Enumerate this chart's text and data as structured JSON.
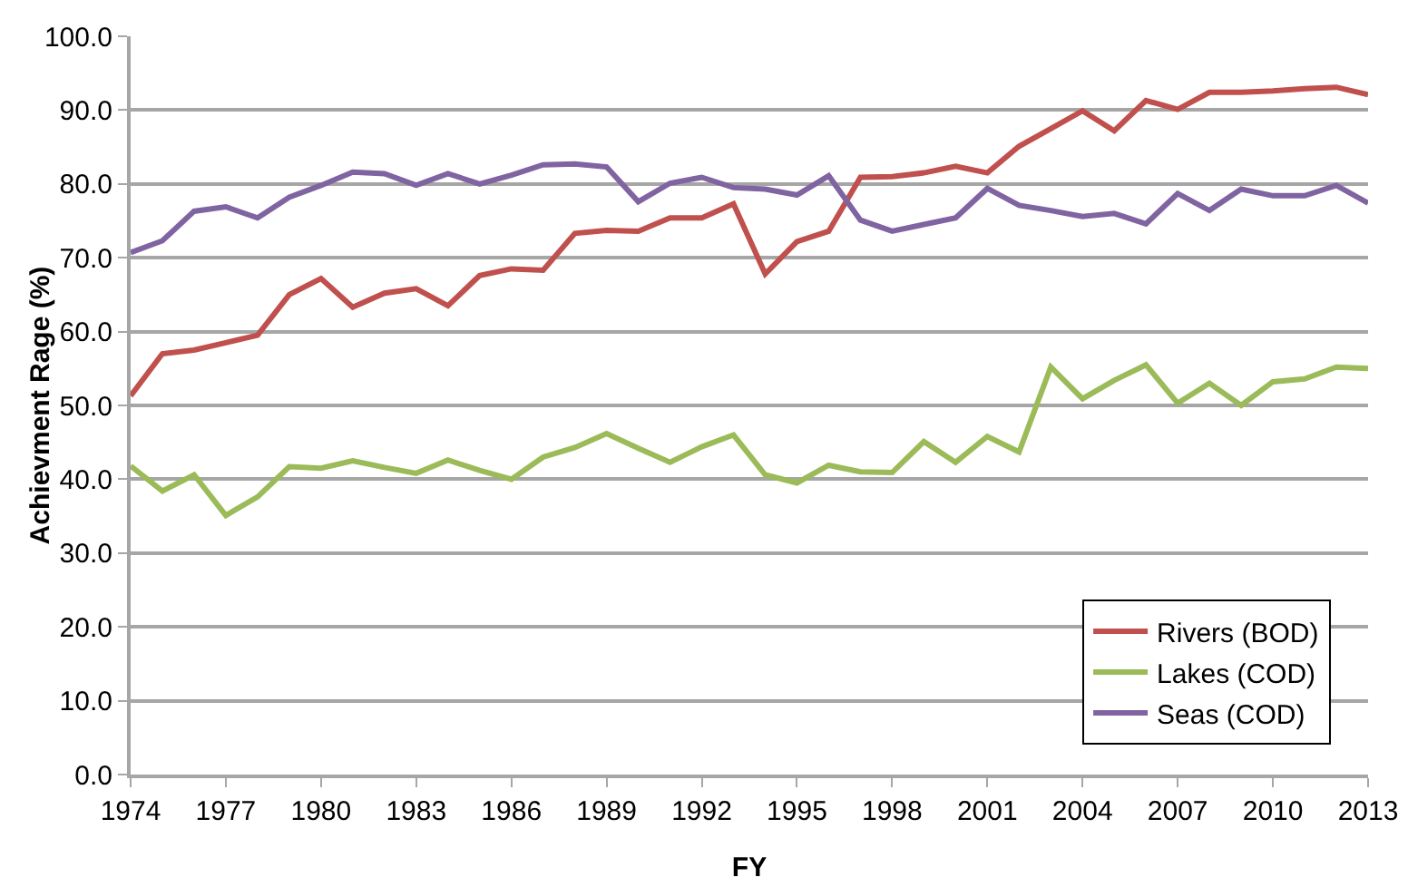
{
  "chart_data": {
    "type": "line",
    "xlabel": "FY",
    "ylabel": "Achievment Rage (%)",
    "x": [
      1974,
      1975,
      1976,
      1977,
      1978,
      1979,
      1980,
      1981,
      1982,
      1983,
      1984,
      1985,
      1986,
      1987,
      1988,
      1989,
      1990,
      1991,
      1992,
      1993,
      1994,
      1995,
      1996,
      1997,
      1998,
      1999,
      2000,
      2001,
      2002,
      2003,
      2004,
      2005,
      2006,
      2007,
      2008,
      2009,
      2010,
      2011,
      2012,
      2013
    ],
    "series": [
      {
        "name": "Rivers (BOD)",
        "color": "#c0504d",
        "values": [
          51.3,
          57,
          57.5,
          58.5,
          59.5,
          65,
          67.2,
          63.3,
          65.2,
          65.8,
          63.5,
          67.6,
          68.5,
          68.3,
          73.3,
          73.7,
          73.6,
          75.4,
          75.4,
          77.3,
          67.8,
          72.2,
          73.6,
          80.9,
          81,
          81.5,
          82.4,
          81.5,
          85.1,
          87.5,
          89.9,
          87.2,
          91.3,
          90.1,
          92.4,
          92.4,
          92.6,
          92.9,
          93.1,
          92.1
        ]
      },
      {
        "name": "Lakes (COD)",
        "color": "#9bbb59",
        "values": [
          41.8,
          38.4,
          40.6,
          35.1,
          37.6,
          41.7,
          41.5,
          42.5,
          41.6,
          40.8,
          42.6,
          41.2,
          40,
          43,
          44.3,
          46.2,
          44.2,
          42.3,
          44.4,
          46,
          40.6,
          39.5,
          41.9,
          41,
          40.9,
          45.1,
          42.3,
          45.8,
          43.7,
          55.2,
          50.9,
          53.4,
          55.5,
          50.3,
          53,
          50,
          53.2,
          53.6,
          55.2,
          55
        ]
      },
      {
        "name": "Seas (COD)",
        "color": "#8064a2",
        "values": [
          70.7,
          72.3,
          76.3,
          76.9,
          75.4,
          78.2,
          79.8,
          81.6,
          81.4,
          79.8,
          81.4,
          80,
          81.2,
          82.6,
          82.7,
          82.3,
          77.6,
          80.1,
          80.9,
          79.5,
          79.3,
          78.5,
          81.1,
          75.1,
          73.6,
          74.5,
          75.4,
          79.4,
          77.1,
          76.4,
          75.6,
          76,
          74.6,
          78.7,
          76.4,
          79.3,
          78.4,
          78.4,
          79.8,
          77.4
        ]
      }
    ],
    "xlim": [
      1974,
      2013
    ],
    "xticks": [
      1974,
      1977,
      1980,
      1983,
      1986,
      1989,
      1992,
      1995,
      1998,
      2001,
      2004,
      2007,
      2010,
      2013
    ],
    "ylim": [
      0,
      100
    ],
    "yticks": [
      {
        "value": 0,
        "label": "0.0"
      },
      {
        "value": 10,
        "label": "10.0"
      },
      {
        "value": 20,
        "label": "20.0"
      },
      {
        "value": 30,
        "label": "30.0"
      },
      {
        "value": 40,
        "label": "40.0"
      },
      {
        "value": 50,
        "label": "50.0"
      },
      {
        "value": 60,
        "label": "60.0"
      },
      {
        "value": 70,
        "label": "70.0"
      },
      {
        "value": 80,
        "label": "80.0"
      },
      {
        "value": 90,
        "label": "90.0"
      },
      {
        "value": 100,
        "label": "100.0"
      }
    ],
    "grid": "y",
    "legend": "bottom right",
    "marker": "none",
    "line_style": "solid"
  }
}
